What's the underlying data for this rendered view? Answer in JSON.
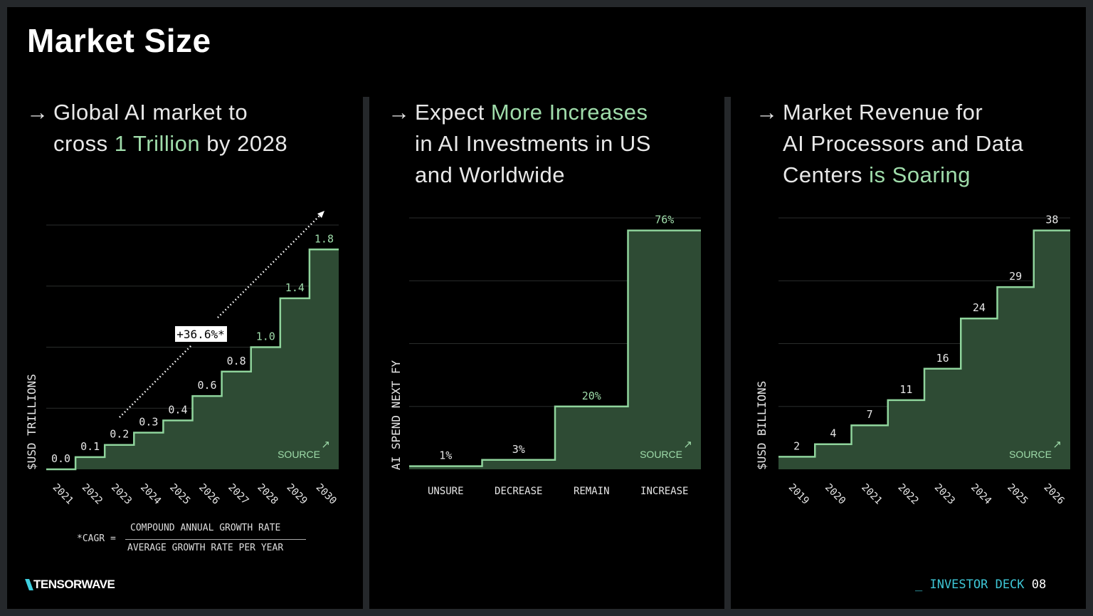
{
  "title": "Market Size",
  "colors": {
    "accent": "#9fdcaa",
    "fill": "#2e4b34",
    "line": "#8fd49c",
    "brand": "#3ec6d6"
  },
  "panels": [
    {
      "arrow": "→",
      "lines": [
        [
          "Global AI market to"
        ],
        [
          "cross ",
          {
            "accent": "1 Trillion"
          },
          " by 2028"
        ]
      ]
    },
    {
      "arrow": "→",
      "lines": [
        [
          "Expect ",
          {
            "accent": "More Increases"
          }
        ],
        [
          "in AI Investments in US"
        ],
        [
          "and Worldwide"
        ]
      ]
    },
    {
      "arrow": "→",
      "lines": [
        [
          "Market Revenue for"
        ],
        [
          "AI Processors and Data"
        ],
        [
          "Centers ",
          {
            "accent": "is Soaring"
          }
        ]
      ]
    }
  ],
  "chart_data": [
    {
      "type": "area",
      "step": true,
      "categories": [
        "2021",
        "2022",
        "2023",
        "2024",
        "2025",
        "2026",
        "2027",
        "2028",
        "2029",
        "2030"
      ],
      "values": [
        0.0,
        0.1,
        0.2,
        0.3,
        0.4,
        0.6,
        0.8,
        1.0,
        1.4,
        1.8
      ],
      "value_labels": [
        "0.0",
        "0.1",
        "0.2",
        "0.3",
        "0.4",
        "0.6",
        "0.8",
        "1.0",
        "1.4",
        "1.8"
      ],
      "ylabel": "$USD TRILLIONS",
      "ylim": [
        0,
        2
      ],
      "grid": true,
      "annotation": "+36.6%*",
      "source_label": "SOURCE",
      "rotated_ticks": true
    },
    {
      "type": "area",
      "step": true,
      "categories": [
        "UNSURE",
        "DECREASE",
        "REMAIN",
        "INCREASE"
      ],
      "values": [
        1,
        3,
        20,
        76
      ],
      "value_labels": [
        "1%",
        "3%",
        "20%",
        "76%"
      ],
      "ylabel": "AI SPEND NEXT FY",
      "ylim": [
        0,
        80
      ],
      "grid": true,
      "source_label": "SOURCE",
      "rotated_ticks": false
    },
    {
      "type": "area",
      "step": true,
      "categories": [
        "2019",
        "2020",
        "2021",
        "2022",
        "2023",
        "2024",
        "2025",
        "2026"
      ],
      "values": [
        2,
        4,
        7,
        11,
        16,
        24,
        29,
        38
      ],
      "value_labels": [
        "2",
        "4",
        "7",
        "11",
        "16",
        "24",
        "29",
        "38"
      ],
      "ylabel": "$USD BILLIONS",
      "ylim": [
        0,
        40
      ],
      "grid": true,
      "source_label": "SOURCE",
      "rotated_ticks": true
    }
  ],
  "cagr": {
    "label": "*CAGR =",
    "numerator": "COMPOUND ANNUAL GROWTH RATE",
    "denominator": "AVERAGE GROWTH RATE PER YEAR"
  },
  "footer": {
    "brand": "TENSORWAVE",
    "deck_prefix": "_ INVESTOR DECK",
    "page": "08"
  }
}
